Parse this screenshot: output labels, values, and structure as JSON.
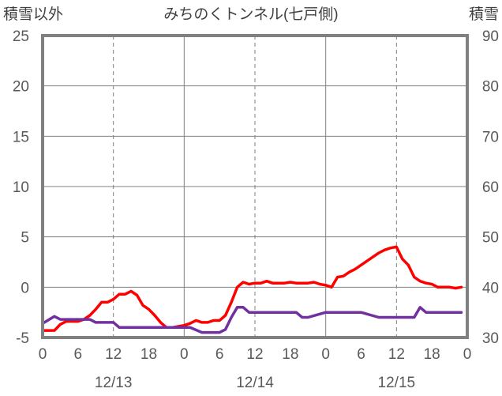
{
  "chart_data": {
    "type": "line",
    "title": "みちのくトンネル(七戸側)",
    "left_axis_label": "積雪以外",
    "right_axis_label": "積雪",
    "left_ylim": [
      -5,
      25
    ],
    "right_ylim": [
      30,
      90
    ],
    "left_ticks": [
      "25",
      "20",
      "15",
      "10",
      "5",
      "0",
      "-5"
    ],
    "right_ticks": [
      "90",
      "80",
      "70",
      "60",
      "50",
      "40",
      "30"
    ],
    "x_range_hours": [
      0,
      72
    ],
    "hour_ticks": [
      "0",
      "6",
      "12",
      "18",
      "0",
      "6",
      "12",
      "18",
      "0",
      "6",
      "12",
      "18",
      "0"
    ],
    "date_labels": [
      "12/13",
      "12/14",
      "12/15"
    ],
    "grid": true,
    "series": [
      {
        "axis": "left",
        "color": "#ff0000",
        "x": [
          0,
          2,
          3,
          4,
          6,
          7,
          8,
          9,
          10,
          11,
          12,
          13,
          14,
          15,
          16,
          17,
          18,
          19,
          20,
          21,
          22,
          23,
          24,
          25,
          26,
          27,
          28,
          29,
          30,
          31,
          32,
          33,
          34,
          35,
          36,
          37,
          38,
          39,
          40,
          41,
          42,
          43,
          44,
          45,
          46,
          47,
          48,
          49,
          50,
          51,
          52,
          53,
          54,
          55,
          56,
          57,
          58,
          59,
          60,
          61,
          62,
          63,
          64,
          65,
          66,
          67,
          68,
          69,
          70,
          71
        ],
        "y": [
          -4.3,
          -4.3,
          -3.7,
          -3.4,
          -3.4,
          -3.2,
          -2.8,
          -2.2,
          -1.5,
          -1.5,
          -1.2,
          -0.7,
          -0.7,
          -0.4,
          -0.8,
          -1.8,
          -2.2,
          -2.8,
          -3.5,
          -4.0,
          -4.0,
          -3.9,
          -3.8,
          -3.6,
          -3.3,
          -3.5,
          -3.5,
          -3.3,
          -3.3,
          -2.8,
          -1.5,
          0.0,
          0.5,
          0.3,
          0.4,
          0.4,
          0.6,
          0.4,
          0.4,
          0.4,
          0.5,
          0.4,
          0.4,
          0.4,
          0.5,
          0.3,
          0.2,
          0.0,
          1.0,
          1.1,
          1.5,
          1.8,
          2.2,
          2.6,
          3.0,
          3.4,
          3.7,
          3.9,
          4.0,
          2.8,
          2.2,
          1.0,
          0.6,
          0.4,
          0.3,
          0.0,
          0.0,
          0.0,
          -0.1,
          0.0
        ]
      },
      {
        "axis": "right",
        "color": "#7030a0",
        "x": [
          0,
          2,
          3,
          4,
          6,
          8,
          9,
          11,
          12,
          13,
          16,
          20,
          25,
          27,
          30,
          31,
          32,
          33,
          34,
          35,
          36,
          39,
          40,
          41,
          42,
          43,
          44,
          45,
          48,
          52,
          53,
          54,
          57,
          60,
          62,
          63,
          64,
          65,
          67,
          71
        ],
        "y": [
          32.8,
          34.2,
          33.6,
          33.6,
          33.6,
          33.6,
          33.0,
          33.0,
          33.0,
          32.0,
          32.0,
          32.0,
          32.0,
          31.0,
          31.0,
          31.6,
          34.0,
          36.0,
          36.0,
          35.0,
          35.0,
          35.0,
          35.0,
          35.0,
          35.0,
          35.0,
          34.0,
          34.0,
          35.0,
          35.0,
          35.0,
          35.0,
          34.0,
          34.0,
          34.0,
          34.0,
          36.0,
          35.0,
          35.0,
          35.0
        ]
      }
    ]
  }
}
